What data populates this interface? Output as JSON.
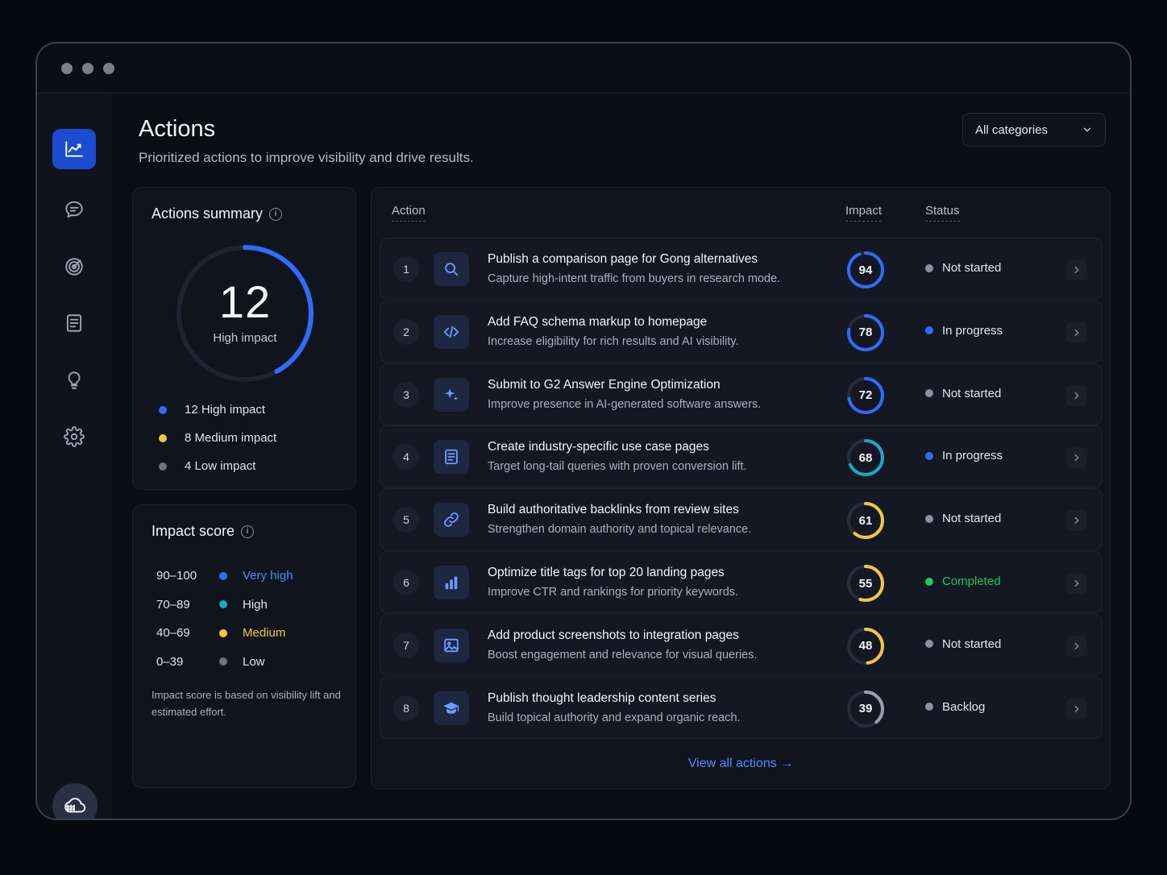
{
  "colors": {
    "accent": "#2f6bff",
    "very_high": "#2f6bff",
    "high": "#1ba7c7",
    "medium": "#f5c542",
    "low": "#6b7280",
    "completed": "#22c55e"
  },
  "sidebar": {
    "items": [
      {
        "icon": "chart-line-icon",
        "active": true
      },
      {
        "icon": "chat-bubble-icon",
        "active": false
      },
      {
        "icon": "target-icon",
        "active": false
      },
      {
        "icon": "document-list-icon",
        "active": false
      },
      {
        "icon": "lightbulb-icon",
        "active": false
      },
      {
        "icon": "gear-icon",
        "active": false
      }
    ],
    "footer_icon": "cloud-logo-icon"
  },
  "header": {
    "title": "Actions",
    "subtitle": "Prioritized actions to improve visibility and drive results.",
    "category_select": "All categories"
  },
  "summary": {
    "title": "Actions summary",
    "total": "12",
    "total_label": "High impact",
    "progress_fraction": 0.42,
    "legend": [
      {
        "label": "12 High impact",
        "color": "#2f6bff"
      },
      {
        "label": "8 Medium impact",
        "color": "#f5c542"
      },
      {
        "label": "4 Low impact",
        "color": "#6b7280"
      }
    ]
  },
  "impact_score": {
    "title": "Impact score",
    "rows": [
      {
        "range": "90–100",
        "label": "Very high",
        "color": "#2f6bff",
        "text_color": "#4a8dff"
      },
      {
        "range": "70–89",
        "label": "High",
        "color": "#1ba7c7",
        "text_color": "#dfe3ea"
      },
      {
        "range": "40–69",
        "label": "Medium",
        "color": "#f5c542",
        "text_color": "#f5c542"
      },
      {
        "range": "0–39",
        "label": "Low",
        "color": "#6b7280",
        "text_color": "#dfe3ea"
      }
    ],
    "note": "Impact score is based on visibility lift and estimated effort."
  },
  "table": {
    "columns": [
      "Action",
      "Impact",
      "Status"
    ],
    "rows": [
      {
        "num": "1",
        "icon": "search-icon",
        "title": "Publish a comparison page for Gong alternatives",
        "desc": "Capture high-intent traffic from buyers in research mode.",
        "impact": 94,
        "gauge_color": "#2f6bff",
        "status": "Not started",
        "status_color": "#8b93a1",
        "status_text_color": "#e3e6ec"
      },
      {
        "num": "2",
        "icon": "code-icon",
        "title": "Add FAQ schema markup to homepage",
        "desc": "Increase eligibility for rich results and AI visibility.",
        "impact": 78,
        "gauge_color": "#2f6bff",
        "status": "In progress",
        "status_color": "#2f6bff",
        "status_text_color": "#e3e6ec"
      },
      {
        "num": "3",
        "icon": "sparkles-icon",
        "title": "Submit to G2 Answer Engine Optimization",
        "desc": "Improve presence in AI-generated software answers.",
        "impact": 72,
        "gauge_color": "#2f6bff",
        "status": "Not started",
        "status_color": "#8b93a1",
        "status_text_color": "#e3e6ec"
      },
      {
        "num": "4",
        "icon": "document-icon",
        "title": "Create industry-specific use case pages",
        "desc": "Target long-tail queries with proven conversion lift.",
        "impact": 68,
        "gauge_color": "#1ba7c7",
        "status": "In progress",
        "status_color": "#2f6bff",
        "status_text_color": "#e3e6ec"
      },
      {
        "num": "5",
        "icon": "link-icon",
        "title": "Build authoritative backlinks from review sites",
        "desc": "Strengthen domain authority and topical relevance.",
        "impact": 61,
        "gauge_color": "#f5c542",
        "status": "Not started",
        "status_color": "#8b93a1",
        "status_text_color": "#e3e6ec"
      },
      {
        "num": "6",
        "icon": "bar-chart-icon",
        "title": "Optimize title tags for top 20 landing pages",
        "desc": "Improve CTR and rankings for priority keywords.",
        "impact": 55,
        "gauge_color": "#f5c542",
        "status": "Completed",
        "status_color": "#22c55e",
        "status_text_color": "#22c55e"
      },
      {
        "num": "7",
        "icon": "image-icon",
        "title": "Add product screenshots to integration pages",
        "desc": "Boost engagement and relevance for visual queries.",
        "impact": 48,
        "gauge_color": "#f5c542",
        "status": "Not started",
        "status_color": "#8b93a1",
        "status_text_color": "#e3e6ec"
      },
      {
        "num": "8",
        "icon": "graduation-cap-icon",
        "title": "Publish thought leadership content series",
        "desc": "Build topical authority and expand organic reach.",
        "impact": 39,
        "gauge_color": "#9aa1ad",
        "status": "Backlog",
        "status_color": "#8b93a1",
        "status_text_color": "#e3e6ec"
      }
    ],
    "view_all": "View all actions →"
  }
}
